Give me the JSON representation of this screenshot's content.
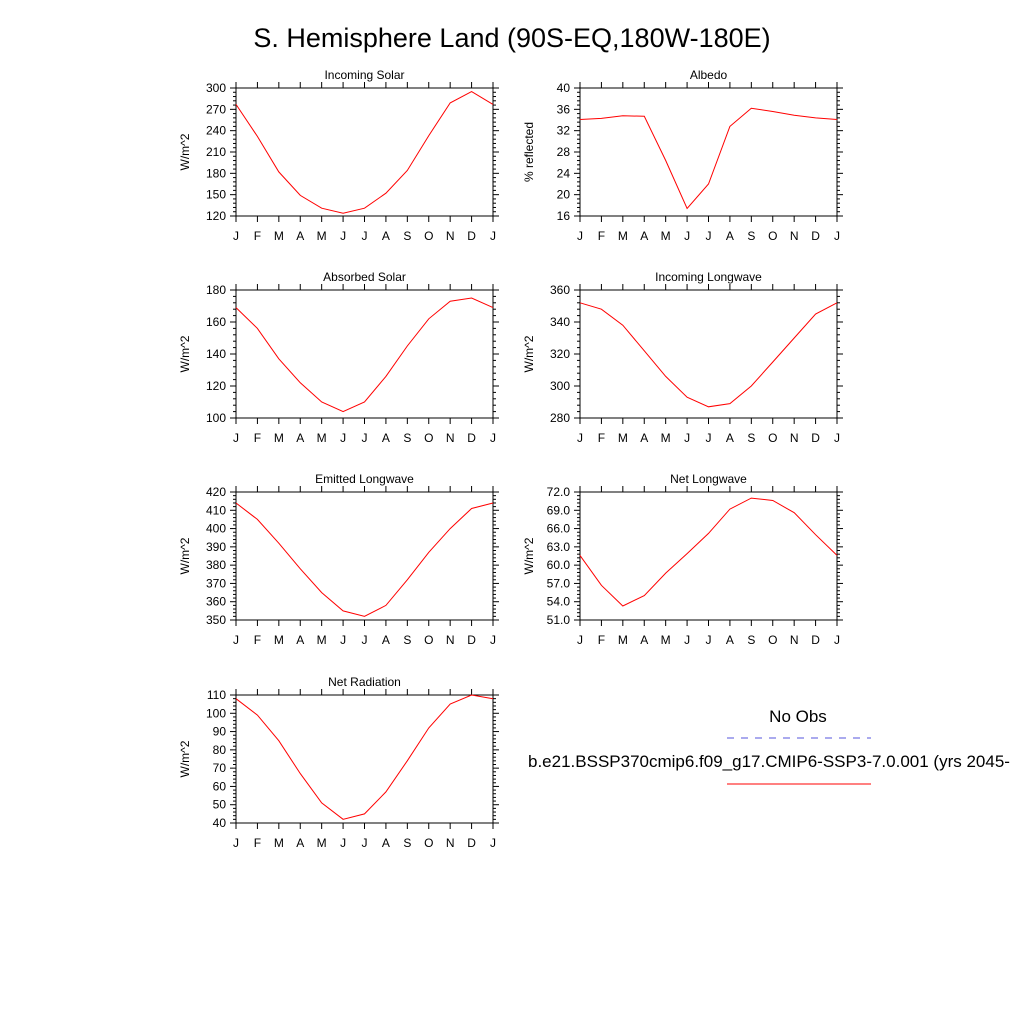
{
  "page": {
    "title": "S. Hemisphere Land (90S-EQ,180W-180E)"
  },
  "legend": {
    "obs_label": "No Obs",
    "obs_color": "#5555dd",
    "model_label": "b.e21.BSSP370cmip6.f09_g17.CMIP6-SSP3-7.0.001 (yrs 2045-",
    "model_color": "#ff0000"
  },
  "chart_data": [
    {
      "type": "line",
      "title": "Incoming Solar",
      "ylabel": "W/m^2",
      "x": [
        "J",
        "F",
        "M",
        "A",
        "M",
        "J",
        "J",
        "A",
        "S",
        "O",
        "N",
        "D",
        "J"
      ],
      "ylim": [
        120,
        300
      ],
      "yticks": [
        120,
        150,
        180,
        210,
        240,
        270,
        300
      ],
      "ytick_labels": [
        "120",
        "150",
        "180",
        "210",
        "240",
        "270",
        "300"
      ],
      "series": [
        {
          "values": [
            277,
            232,
            182,
            149,
            131,
            124,
            131,
            152,
            184,
            233,
            279,
            295,
            277
          ],
          "color": "#ff0000"
        }
      ]
    },
    {
      "type": "line",
      "title": "Albedo",
      "ylabel": "% reflected",
      "x": [
        "J",
        "F",
        "M",
        "A",
        "M",
        "J",
        "J",
        "A",
        "S",
        "O",
        "N",
        "D",
        "J"
      ],
      "ylim": [
        16,
        40
      ],
      "yticks": [
        16,
        20,
        24,
        28,
        32,
        36,
        40
      ],
      "ytick_labels": [
        "16",
        "20",
        "24",
        "28",
        "32",
        "36",
        "40"
      ],
      "series": [
        {
          "values": [
            34.1,
            34.3,
            34.8,
            34.7,
            26.4,
            17.4,
            22.0,
            32.8,
            36.2,
            35.6,
            34.9,
            34.4,
            34.1
          ],
          "color": "#ff0000"
        }
      ]
    },
    {
      "type": "line",
      "title": "Absorbed Solar",
      "ylabel": "W/m^2",
      "x": [
        "J",
        "F",
        "M",
        "A",
        "M",
        "J",
        "J",
        "A",
        "S",
        "O",
        "N",
        "D",
        "J"
      ],
      "ylim": [
        100,
        180
      ],
      "yticks": [
        100,
        120,
        140,
        160,
        180
      ],
      "ytick_labels": [
        "100",
        "120",
        "140",
        "160",
        "180"
      ],
      "series": [
        {
          "values": [
            169,
            156,
            137,
            122,
            110,
            104,
            110,
            126,
            145,
            162,
            173,
            175,
            169
          ],
          "color": "#ff0000"
        }
      ]
    },
    {
      "type": "line",
      "title": "Incoming Longwave",
      "ylabel": "W/m^2",
      "x": [
        "J",
        "F",
        "M",
        "A",
        "M",
        "J",
        "J",
        "A",
        "S",
        "O",
        "N",
        "D",
        "J"
      ],
      "ylim": [
        280,
        360
      ],
      "yticks": [
        280,
        300,
        320,
        340,
        360
      ],
      "ytick_labels": [
        "280",
        "300",
        "320",
        "340",
        "360"
      ],
      "series": [
        {
          "values": [
            352,
            348,
            338,
            322,
            306,
            293,
            287,
            289,
            300,
            315,
            330,
            345,
            352
          ],
          "color": "#ff0000"
        }
      ]
    },
    {
      "type": "line",
      "title": "Emitted Longwave",
      "ylabel": "W/m^2",
      "x": [
        "J",
        "F",
        "M",
        "A",
        "M",
        "J",
        "J",
        "A",
        "S",
        "O",
        "N",
        "D",
        "J"
      ],
      "ylim": [
        350,
        420
      ],
      "yticks": [
        350,
        360,
        370,
        380,
        390,
        400,
        410,
        420
      ],
      "ytick_labels": [
        "350",
        "360",
        "370",
        "380",
        "390",
        "400",
        "410",
        "420"
      ],
      "series": [
        {
          "values": [
            414,
            405,
            392,
            378,
            365,
            355,
            352,
            358,
            372,
            387,
            400,
            411,
            414
          ],
          "color": "#ff0000"
        }
      ]
    },
    {
      "type": "line",
      "title": "Net Longwave",
      "ylabel": "W/m^2",
      "x": [
        "J",
        "F",
        "M",
        "A",
        "M",
        "J",
        "J",
        "A",
        "S",
        "O",
        "N",
        "D",
        "J"
      ],
      "ylim": [
        51,
        72
      ],
      "yticks": [
        51,
        54,
        57,
        60,
        63,
        66,
        69,
        72
      ],
      "ytick_labels": [
        "51.0",
        "54.0",
        "57.0",
        "60.0",
        "63.0",
        "66.0",
        "69.0",
        "72.0"
      ],
      "series": [
        {
          "values": [
            61.6,
            56.7,
            53.3,
            55.0,
            58.7,
            61.9,
            65.2,
            69.2,
            71.0,
            70.6,
            68.6,
            65.0,
            61.6
          ],
          "color": "#ff0000"
        }
      ]
    },
    {
      "type": "line",
      "title": "Net Radiation",
      "ylabel": "W/m^2",
      "x": [
        "J",
        "F",
        "M",
        "A",
        "M",
        "J",
        "J",
        "A",
        "S",
        "O",
        "N",
        "D",
        "J"
      ],
      "ylim": [
        40,
        110
      ],
      "yticks": [
        40,
        50,
        60,
        70,
        80,
        90,
        100,
        110
      ],
      "ytick_labels": [
        "40",
        "50",
        "60",
        "70",
        "80",
        "90",
        "100",
        "110"
      ],
      "series": [
        {
          "values": [
            108,
            99,
            85,
            67,
            51,
            42,
            45,
            57,
            74,
            92,
            105,
            110,
            108
          ],
          "color": "#ff0000"
        }
      ]
    }
  ]
}
